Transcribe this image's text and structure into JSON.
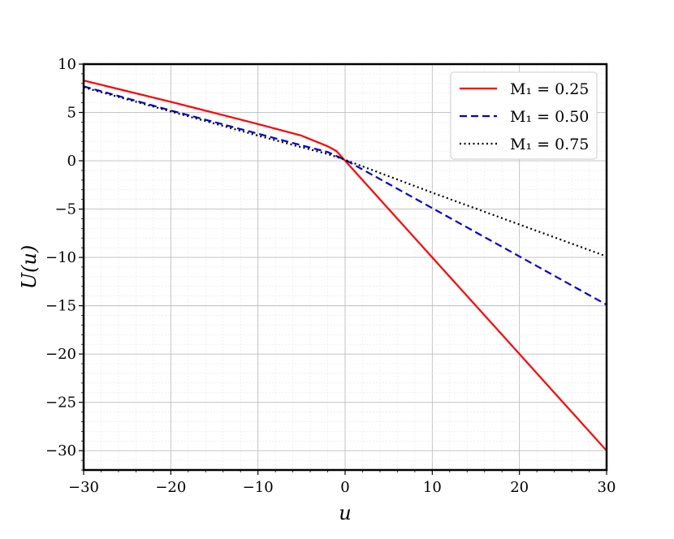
{
  "chart_data": {
    "type": "line",
    "title": "",
    "xlabel": "u",
    "ylabel": "U(u)",
    "xlim": [
      -30,
      30
    ],
    "ylim": [
      -32,
      10
    ],
    "xticks": [
      -30,
      -20,
      -10,
      0,
      10,
      20,
      30
    ],
    "yticks": [
      10,
      5,
      0,
      -5,
      -10,
      -15,
      -20,
      -25,
      -30
    ],
    "xtick_labels": [
      "−30",
      "−20",
      "−10",
      "0",
      "10",
      "20",
      "30"
    ],
    "ytick_labels": [
      "10",
      "5",
      "0",
      "−5",
      "−10",
      "−15",
      "−20",
      "−25",
      "−30"
    ],
    "grid": true,
    "legend_position": "top-right",
    "series": [
      {
        "name": "M₁ = 0.25",
        "color": "#ff0000",
        "dash": "solid",
        "x": [
          -30,
          -20,
          -10,
          -5,
          -2,
          -1,
          0,
          5,
          10,
          20,
          30
        ],
        "y": [
          8.3,
          6.1,
          3.8,
          2.6,
          1.5,
          1.0,
          0.0,
          -5.0,
          -10.0,
          -20.0,
          -30.0
        ]
      },
      {
        "name": "M₁ = 0.50",
        "color": "#0000dd",
        "dash": "dashed",
        "x": [
          -30,
          -20,
          -10,
          -5,
          -2,
          0,
          5,
          10,
          20,
          30
        ],
        "y": [
          7.7,
          5.2,
          2.8,
          1.6,
          0.9,
          0.1,
          -2.4,
          -4.9,
          -9.9,
          -14.9
        ]
      },
      {
        "name": "M₁ = 0.75",
        "color": "#000000",
        "dash": "dotted",
        "x": [
          -30,
          -20,
          -10,
          -5,
          -2,
          0,
          5,
          10,
          20,
          30
        ],
        "y": [
          7.6,
          5.1,
          2.6,
          1.4,
          0.7,
          0.1,
          -1.6,
          -3.3,
          -6.6,
          -9.9
        ]
      }
    ]
  }
}
